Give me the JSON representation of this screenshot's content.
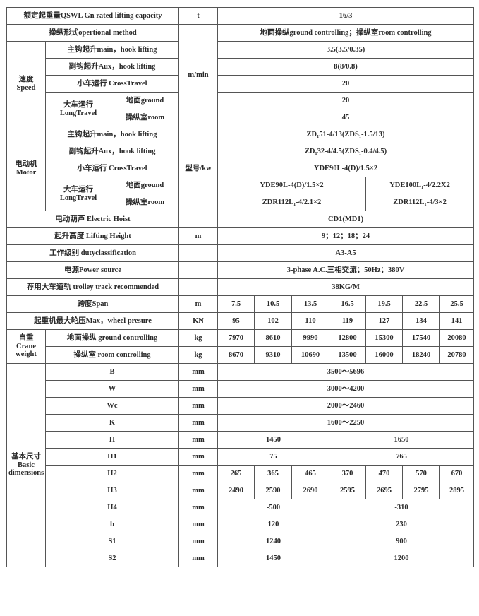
{
  "capacity": {
    "label": "额定起重量QSWL Gn rated lifting capacity",
    "unit": "t",
    "value": "16/3"
  },
  "method": {
    "label": "操纵形式opertional method",
    "value": "地面操纵ground controlling；操纵室room controlling"
  },
  "speed": {
    "label_cn": "速度",
    "label_en": "Speed",
    "unit": "m/min",
    "main_hook": {
      "label": "主钩起升main，hook lifting",
      "value": "3.5(3.5/0.35)"
    },
    "aux_hook": {
      "label": "副钩起升Aux，hook lifting",
      "value": "8(8/0.8)"
    },
    "cross_travel": {
      "label": "小车运行 CrossTravel",
      "value": "20"
    },
    "long_travel": {
      "label_cn": "大车运行",
      "label_en": "LongTravel",
      "ground": {
        "label": "地面ground",
        "value": "20"
      },
      "room": {
        "label": "操纵室room",
        "value": "45"
      }
    }
  },
  "motor": {
    "label_cn": "电动机",
    "label_en": "Motor",
    "unit": "型号/kw",
    "main_hook": {
      "label": "主钩起升main，hook lifting",
      "value": "ZD₁51-4/13(ZDS₁-1.5/13)"
    },
    "aux_hook": {
      "label": "副钩起升Aux，hook lifting",
      "value": "ZD₁32-4/4.5(ZDS₁-0.4/4.5)"
    },
    "cross_travel": {
      "label": "小车运行 CrossTravel",
      "value": "YDE90L-4(D)/1.5×2"
    },
    "long_travel": {
      "label_cn": "大车运行",
      "label_en": "LongTravel",
      "ground": {
        "label": "地面ground",
        "values": [
          "YDE90L-4(D)/1.5×2",
          "YDE100L₁-4/2.2X2"
        ]
      },
      "room": {
        "label": "操纵室room",
        "values": [
          "ZDR112L₁-4/2.1×2",
          "ZDR112L₁-4/3×2"
        ]
      }
    }
  },
  "hoist": {
    "label": "电动葫芦 Electric Hoist",
    "unit": "",
    "value": "CD1(MD1)"
  },
  "lifting_height": {
    "label": "起升高度 Lifting Height",
    "unit": "m",
    "value": "9；12；18；24"
  },
  "duty": {
    "label": "工作级别 dutyclassification",
    "unit": "",
    "value": "A3-A5"
  },
  "power": {
    "label": "电源Power source",
    "unit": "",
    "value": "3-phase A.C.三相交流；50Hz；380V"
  },
  "track": {
    "label": "荐用大车道轨 trolley track recommended",
    "unit": "",
    "value": "38KG/M"
  },
  "span": {
    "label": "跨度Span",
    "unit": "m",
    "values": [
      "7.5",
      "10.5",
      "13.5",
      "16.5",
      "19.5",
      "22.5",
      "25.5"
    ]
  },
  "wheel_pressure": {
    "label": "起重机最大轮压Max，wheel presure",
    "unit": "KN",
    "values": [
      "95",
      "102",
      "110",
      "119",
      "127",
      "134",
      "141"
    ]
  },
  "crane_weight": {
    "label_cn": "自重",
    "label_en1": "Crane",
    "label_en2": "weight",
    "ground": {
      "label": "地面操纵 ground controlling",
      "unit": "kg",
      "values": [
        "7970",
        "8610",
        "9990",
        "12800",
        "15300",
        "17540",
        "20080"
      ]
    },
    "room": {
      "label": "操纵室 room controlling",
      "unit": "kg",
      "values": [
        "8670",
        "9310",
        "10690",
        "13500",
        "16000",
        "18240",
        "20780"
      ]
    }
  },
  "dimensions": {
    "label_cn": "基本尺寸",
    "label_en1": "Basic",
    "label_en2": "dimensions",
    "B": {
      "label": "B",
      "unit": "mm",
      "value": "3500～5696"
    },
    "W": {
      "label": "W",
      "unit": "mm",
      "value": "3000～4200"
    },
    "Wc": {
      "label": "Wc",
      "unit": "mm",
      "value": "2000～2460"
    },
    "K": {
      "label": "K",
      "unit": "mm",
      "value": "1600～2250"
    },
    "H": {
      "label": "H",
      "unit": "mm",
      "values": [
        "1450",
        "1650"
      ]
    },
    "H1": {
      "label": "H1",
      "unit": "mm",
      "values": [
        "75",
        "765"
      ]
    },
    "H2": {
      "label": "H2",
      "unit": "mm",
      "values": [
        "265",
        "365",
        "465",
        "370",
        "470",
        "570",
        "670"
      ]
    },
    "H3": {
      "label": "H3",
      "unit": "mm",
      "values": [
        "2490",
        "2590",
        "2690",
        "2595",
        "2695",
        "2795",
        "2895"
      ]
    },
    "H4": {
      "label": "H4",
      "unit": "mm",
      "values": [
        "-500",
        "-310"
      ]
    },
    "b": {
      "label": "b",
      "unit": "mm",
      "values": [
        "120",
        "230"
      ]
    },
    "S1": {
      "label": "S1",
      "unit": "mm",
      "values": [
        "1240",
        "900"
      ]
    },
    "S2": {
      "label": "S2",
      "unit": "mm",
      "values": [
        "1450",
        "1200"
      ]
    }
  }
}
